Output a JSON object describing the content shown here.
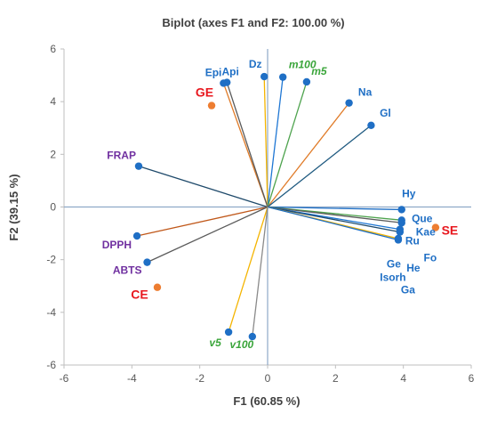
{
  "chart_data": {
    "type": "scatter",
    "title": "Biplot (axes F1 and F2: 100.00 %)",
    "xlabel": "F1 (60.85 %)",
    "ylabel": "F2 (39.15 %)",
    "xlim": [
      -6,
      6
    ],
    "ylim": [
      -6,
      6
    ],
    "x_ticks": [
      -6,
      -4,
      -2,
      0,
      2,
      4,
      6
    ],
    "y_ticks": [
      -6,
      -4,
      -2,
      0,
      2,
      4,
      6
    ],
    "x_tick_labels": [
      "-6",
      "-4",
      "-2",
      "0",
      "2",
      "4",
      "6"
    ],
    "y_tick_labels": [
      "-6",
      "-4",
      "-2",
      "0",
      "2",
      "4",
      "6"
    ],
    "grid": false,
    "colors": {
      "axis": "#bfbfbf",
      "zero_line": "#8ea9c8",
      "variable_point": "#1f6fc5",
      "observation_point": "#ed7d31",
      "label_blue": "#1f6fc5",
      "label_purple": "#7030a0",
      "label_green": "#3aa53a",
      "label_red": "#e8181f"
    },
    "variables": [
      {
        "name": "Epi",
        "x": -1.3,
        "y": 4.7,
        "line_color": "#e07b28",
        "label_color": "#1f6fc5"
      },
      {
        "name": "Api",
        "x": -1.2,
        "y": 4.73,
        "line_color": "#5a5a5a",
        "label_color": "#1f6fc5"
      },
      {
        "name": "Dz",
        "x": -0.1,
        "y": 4.95,
        "line_color": "#f4b400",
        "label_color": "#1f6fc5"
      },
      {
        "name": "m100",
        "x": 0.45,
        "y": 4.93,
        "line_color": "#1f77d4",
        "label_color": "#3aa53a",
        "italic": true
      },
      {
        "name": "m5",
        "x": 1.15,
        "y": 4.75,
        "line_color": "#4ea34e",
        "label_color": "#3aa53a",
        "italic": true
      },
      {
        "name": "Na",
        "x": 2.4,
        "y": 3.95,
        "line_color": "#e07b28",
        "label_color": "#1f6fc5"
      },
      {
        "name": "Gl",
        "x": 3.05,
        "y": 3.1,
        "line_color": "#1f5a80",
        "label_color": "#1f6fc5"
      },
      {
        "name": "FRAP",
        "x": -3.8,
        "y": 1.55,
        "line_color": "#1f4a6b",
        "label_color": "#7030a0"
      },
      {
        "name": "Hy",
        "x": 3.95,
        "y": -0.1,
        "line_color": "#1f6fc5",
        "label_color": "#1f6fc5"
      },
      {
        "name": "Que",
        "x": 3.95,
        "y": -0.5,
        "line_color": "#4ea34e",
        "label_color": "#1f6fc5"
      },
      {
        "name": "Kae",
        "x": 3.95,
        "y": -0.6,
        "line_color": "#5a5a5a",
        "label_color": "#1f6fc5"
      },
      {
        "name": "Ru",
        "x": 3.9,
        "y": -0.85,
        "line_color": "#1f77d4",
        "label_color": "#1f6fc5"
      },
      {
        "name": "Fo",
        "x": 3.9,
        "y": -0.95,
        "line_color": "#1f4a6b",
        "label_color": "#1f6fc5"
      },
      {
        "name": "He",
        "x": 3.85,
        "y": -1.2,
        "line_color": "#f4b400",
        "label_color": "#1f6fc5"
      },
      {
        "name": "Ge",
        "x": 3.85,
        "y": -1.25,
        "line_color": "#1f6fc5",
        "label_color": "#1f6fc5"
      },
      {
        "name": "Isorh",
        "x": 3.85,
        "y": -1.22,
        "line_color": "#1f6fc5",
        "label_color": "#1f6fc5"
      },
      {
        "name": "Ga",
        "x": 3.85,
        "y": -1.28,
        "line_color": "#1f6fc5",
        "label_color": "#1f6fc5"
      },
      {
        "name": "DPPH",
        "x": -3.85,
        "y": -1.1,
        "line_color": "#c0581a",
        "label_color": "#7030a0"
      },
      {
        "name": "ABTS",
        "x": -3.55,
        "y": -2.1,
        "line_color": "#5a5a5a",
        "label_color": "#7030a0"
      },
      {
        "name": "v5",
        "x": -1.15,
        "y": -4.75,
        "line_color": "#f4b400",
        "label_color": "#3aa53a",
        "italic": true
      },
      {
        "name": "v100",
        "x": -0.45,
        "y": -4.92,
        "line_color": "#8a8a8a",
        "label_color": "#3aa53a",
        "italic": true
      }
    ],
    "observations": [
      {
        "name": "GE",
        "x": -1.65,
        "y": 3.85
      },
      {
        "name": "SE",
        "x": 4.95,
        "y": -0.78
      },
      {
        "name": "CE",
        "x": -3.25,
        "y": -3.05
      }
    ]
  }
}
